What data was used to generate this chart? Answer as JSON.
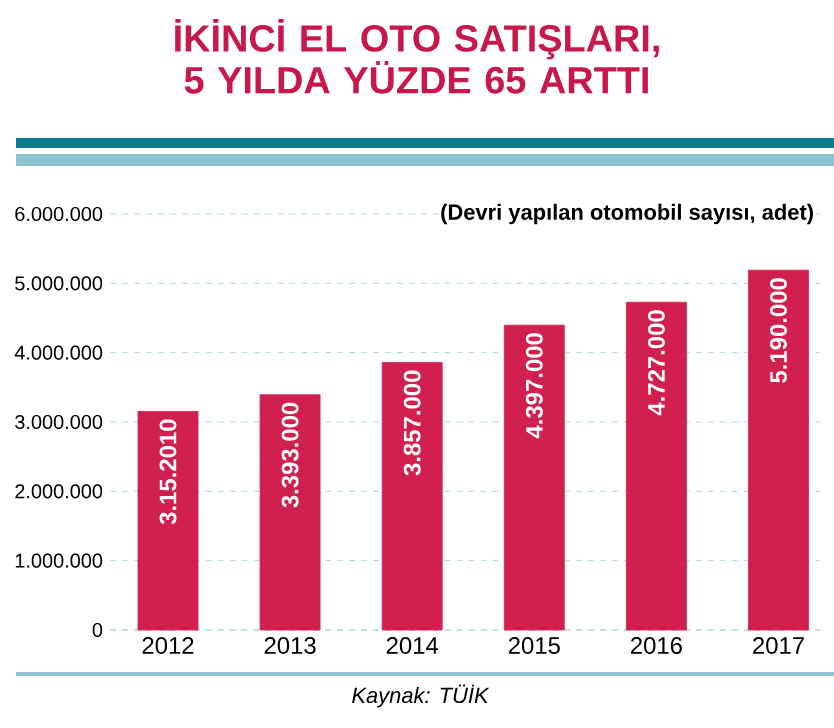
{
  "chart_data": {
    "type": "bar",
    "title": "İKİNCİ EL OTO SATIŞLARI, 5 YILDA YÜZDE 65 ARTTI",
    "subtitle": "(Devri yapılan otomobil sayısı, adet)",
    "categories": [
      "2012",
      "2013",
      "2014",
      "2015",
      "2016",
      "2017"
    ],
    "values": [
      3152010,
      3393000,
      3857000,
      4397000,
      4727000,
      5190000
    ],
    "value_labels": [
      "3.15.2010",
      "3.393.000",
      "3.857.000",
      "4.397.000",
      "4.727.000",
      "5.190.000"
    ],
    "color": "#d11f4e",
    "ylim": [
      0,
      6000000
    ],
    "yticks": [
      0,
      {
        "value": 1000000,
        "label": "1.000.000"
      },
      {
        "value": 2000000,
        "label": "2.000.000"
      },
      {
        "value": 3000000,
        "label": "3.000.000"
      },
      {
        "value": 4000000,
        "label": "4.000.000"
      },
      {
        "value": 5000000,
        "label": "5.000.000"
      },
      {
        "value": 6000000,
        "label": "6.000.000"
      }
    ],
    "grid": "y",
    "annotations": [
      "Kaynak: TÜİK"
    ]
  }
}
